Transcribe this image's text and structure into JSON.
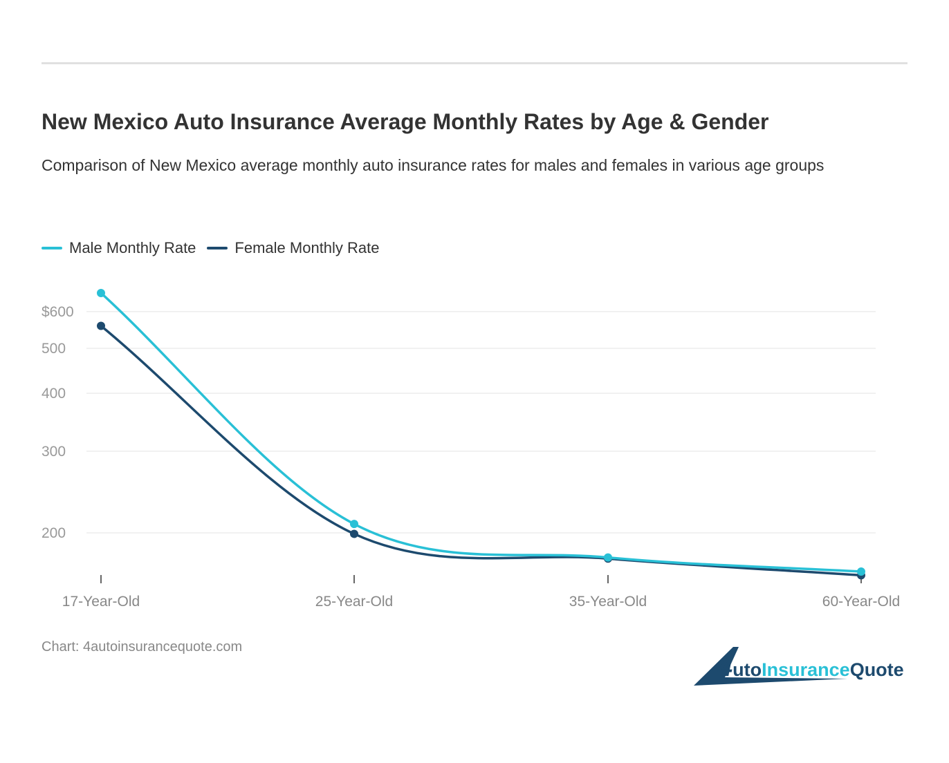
{
  "title": "New Mexico Auto Insurance Average Monthly Rates by Age & Gender",
  "subtitle": "Comparison of New Mexico average monthly auto insurance rates for males and females in various age groups",
  "source": "Chart: 4autoinsurancequote.com",
  "logo_text": "4AutoInsuranceQuote",
  "chart_data": {
    "type": "line",
    "title": "New Mexico Auto Insurance Average Monthly Rates by Age & Gender",
    "categories": [
      "17-Year-Old",
      "25-Year-Old",
      "35-Year-Old",
      "60-Year-Old"
    ],
    "y_scale": "log",
    "y_ticks": [
      200,
      300,
      400,
      500,
      600
    ],
    "y_tick_labels": [
      "200",
      "300",
      "400",
      "500",
      "$600"
    ],
    "grid": true,
    "legend_position": "top-left",
    "series": [
      {
        "name": "Male Monthly Rate",
        "color": "#29c0d6",
        "values": [
          658,
          209,
          177,
          165
        ]
      },
      {
        "name": "Female Monthly Rate",
        "color": "#1d4a6e",
        "values": [
          559,
          199,
          176,
          162
        ]
      }
    ]
  }
}
